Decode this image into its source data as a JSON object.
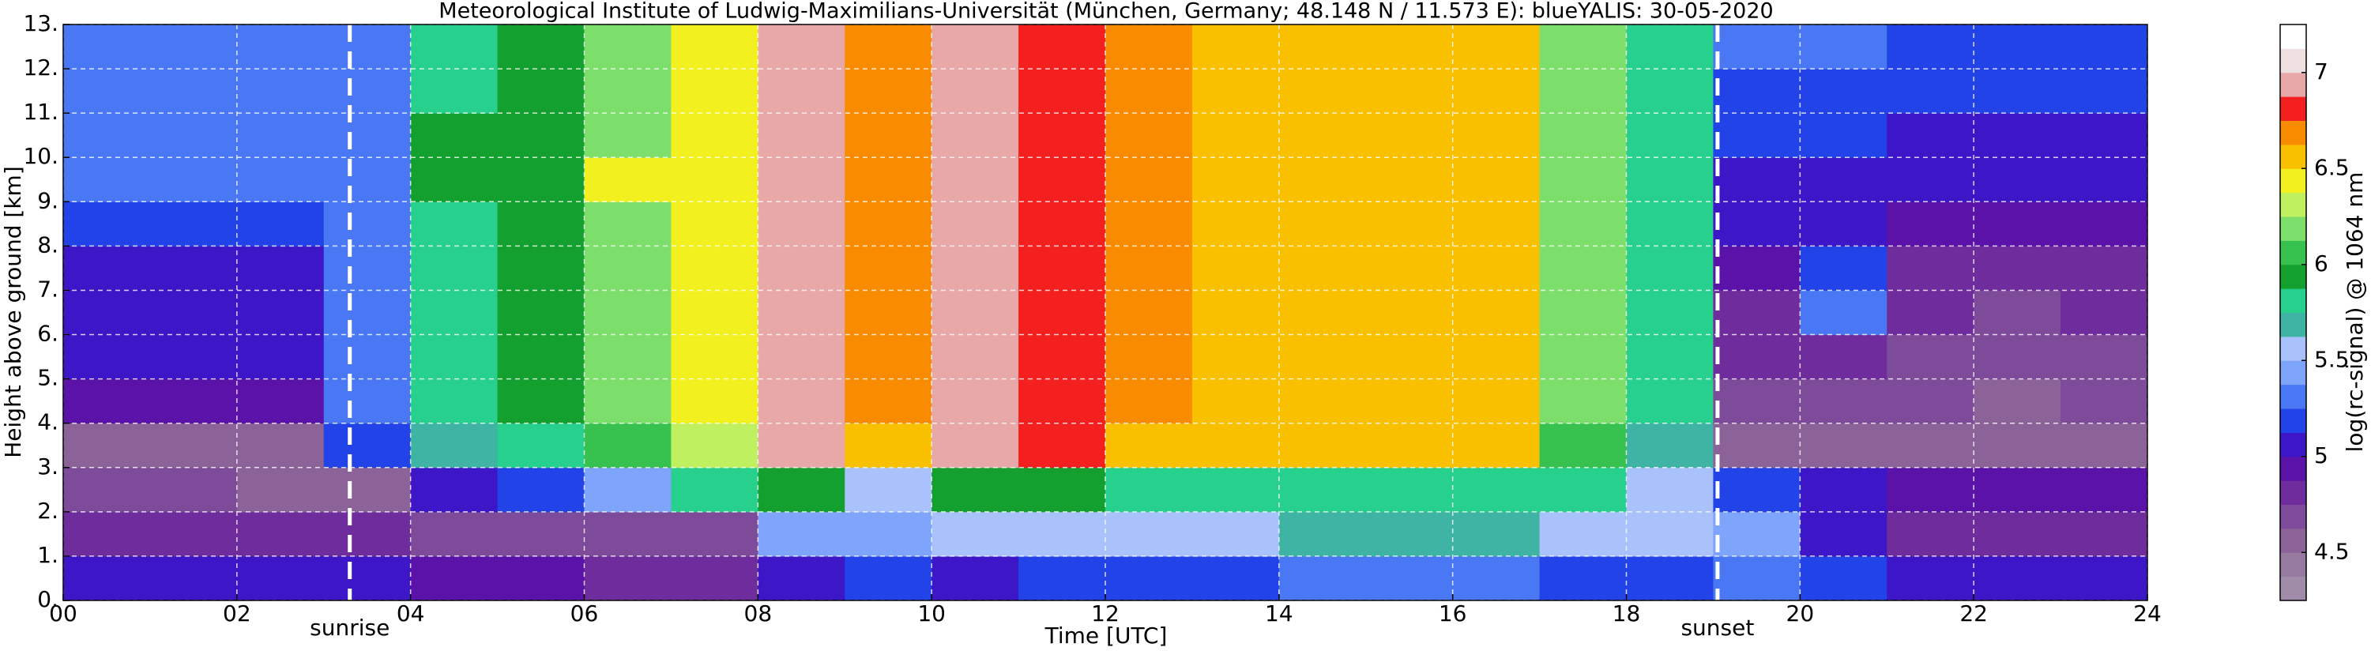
{
  "chart_data": {
    "type": "heatmap",
    "title": "Meteorological Institute of Ludwig-Maximilians-Universität (München, Germany; 48.148 N / 11.573 E):    blueYALIS: 30-05-2020",
    "x_label": "Time [UTC]",
    "y_label": "Height above ground [km]",
    "x": [
      0,
      1,
      2,
      3,
      4,
      5,
      6,
      7,
      8,
      9,
      10,
      11,
      12,
      13,
      14,
      15,
      16,
      17,
      18,
      19,
      20,
      21,
      22,
      23,
      24
    ],
    "y": [
      0,
      1,
      2,
      3,
      4,
      5,
      6,
      7,
      8,
      9,
      10,
      11,
      12,
      13
    ],
    "z": [
      [
        5.1,
        5.1,
        5.1,
        5.0,
        4.9,
        4.9,
        4.8,
        4.8,
        5.1,
        5.2,
        5.1,
        5.2,
        5.2,
        5.2,
        5.3,
        5.3,
        5.3,
        5.2,
        5.2,
        5.3,
        5.2,
        5.1,
        5.0,
        5.0
      ],
      [
        4.8,
        4.8,
        4.8,
        4.8,
        4.7,
        4.7,
        4.7,
        4.7,
        5.4,
        5.4,
        5.6,
        5.6,
        5.6,
        5.6,
        5.7,
        5.7,
        5.7,
        5.6,
        5.6,
        5.4,
        5.0,
        4.8,
        4.8,
        4.8
      ],
      [
        4.7,
        4.7,
        4.6,
        4.6,
        5.0,
        5.2,
        5.4,
        5.8,
        5.9,
        5.6,
        5.9,
        5.9,
        5.8,
        5.8,
        5.8,
        5.8,
        5.8,
        5.8,
        5.6,
        5.2,
        5.0,
        4.9,
        4.9,
        4.9
      ],
      [
        4.6,
        4.6,
        4.6,
        5.2,
        5.7,
        5.8,
        6.1,
        6.3,
        6.9,
        6.6,
        6.9,
        6.8,
        6.6,
        6.6,
        6.6,
        6.6,
        6.5,
        6.1,
        5.7,
        4.6,
        4.6,
        4.6,
        4.6,
        4.6
      ],
      [
        4.9,
        4.9,
        4.9,
        5.3,
        5.8,
        5.9,
        6.2,
        6.4,
        6.9,
        6.7,
        6.9,
        6.8,
        6.7,
        6.6,
        6.6,
        6.6,
        6.5,
        6.2,
        5.8,
        4.7,
        4.7,
        4.7,
        4.6,
        4.7
      ],
      [
        5.0,
        5.0,
        5.0,
        5.3,
        5.8,
        5.9,
        6.2,
        6.4,
        6.9,
        6.7,
        6.9,
        6.8,
        6.7,
        6.6,
        6.6,
        6.6,
        6.5,
        6.2,
        5.8,
        4.8,
        4.8,
        4.7,
        4.7,
        4.7
      ],
      [
        5.0,
        5.0,
        5.0,
        5.3,
        5.8,
        5.9,
        6.2,
        6.4,
        6.9,
        6.7,
        6.9,
        6.8,
        6.7,
        6.6,
        6.6,
        6.6,
        6.5,
        6.2,
        5.8,
        4.8,
        5.3,
        4.8,
        4.7,
        4.8
      ],
      [
        5.1,
        5.1,
        5.1,
        5.3,
        5.8,
        5.9,
        6.2,
        6.4,
        6.9,
        6.7,
        6.9,
        6.8,
        6.7,
        6.6,
        6.6,
        6.6,
        6.5,
        6.2,
        5.8,
        4.9,
        5.2,
        4.8,
        4.8,
        4.8
      ],
      [
        5.2,
        5.2,
        5.2,
        5.3,
        5.8,
        5.9,
        6.2,
        6.4,
        6.9,
        6.7,
        6.9,
        6.8,
        6.7,
        6.6,
        6.6,
        6.6,
        6.5,
        6.2,
        5.8,
        5.0,
        5.0,
        4.9,
        4.9,
        4.9
      ],
      [
        5.3,
        5.3,
        5.3,
        5.3,
        5.9,
        5.9,
        6.4,
        6.4,
        6.9,
        6.7,
        6.9,
        6.8,
        6.7,
        6.6,
        6.6,
        6.6,
        6.5,
        6.2,
        5.8,
        5.1,
        5.1,
        5.0,
        5.0,
        5.0
      ],
      [
        5.3,
        5.3,
        5.3,
        5.3,
        5.9,
        5.9,
        6.2,
        6.4,
        6.9,
        6.7,
        6.9,
        6.8,
        6.7,
        6.6,
        6.6,
        6.6,
        6.5,
        6.2,
        5.8,
        5.2,
        5.2,
        5.1,
        5.1,
        5.1
      ],
      [
        5.3,
        5.3,
        5.3,
        5.3,
        5.8,
        5.9,
        6.2,
        6.4,
        6.9,
        6.7,
        6.9,
        6.8,
        6.7,
        6.6,
        6.6,
        6.6,
        6.5,
        6.2,
        5.8,
        5.2,
        5.2,
        5.2,
        5.2,
        5.2
      ],
      [
        5.3,
        5.3,
        5.3,
        5.3,
        5.8,
        5.9,
        6.2,
        6.4,
        6.9,
        6.7,
        6.9,
        6.8,
        6.7,
        6.6,
        6.6,
        6.6,
        6.5,
        6.2,
        5.8,
        5.3,
        5.3,
        5.2,
        5.2,
        5.2
      ]
    ],
    "xlim": [
      0,
      24
    ],
    "xticks": [
      {
        "value": 0,
        "label": "00"
      },
      {
        "value": 2,
        "label": "02"
      },
      {
        "value": 4,
        "label": "04"
      },
      {
        "value": 6,
        "label": "06"
      },
      {
        "value": 8,
        "label": "08"
      },
      10,
      12,
      14,
      16,
      18,
      20,
      22,
      24
    ],
    "ylim": [
      0,
      13
    ],
    "yticks": [
      {
        "value": 0,
        "label": "0."
      },
      {
        "value": 1,
        "label": "1."
      },
      {
        "value": 2,
        "label": "2."
      },
      {
        "value": 3,
        "label": "3."
      },
      {
        "value": 4,
        "label": "4."
      },
      {
        "value": 5,
        "label": "5."
      },
      {
        "value": 6,
        "label": "6."
      },
      {
        "value": 7,
        "label": "7."
      },
      {
        "value": 8,
        "label": "8."
      },
      {
        "value": 9,
        "label": "9."
      },
      {
        "value": 10,
        "label": "10."
      },
      {
        "value": 11,
        "label": "11."
      },
      {
        "value": 12,
        "label": "12."
      },
      {
        "value": 13,
        "label": "13."
      }
    ],
    "grid": true,
    "annotations": [
      {
        "x": 3.3,
        "text": "sunrise"
      },
      {
        "x": 19.05,
        "text": "sunset"
      }
    ],
    "colorbar": {
      "label": "log(rc-signal) @ 1064 nm",
      "lim": [
        4.25,
        7.25
      ],
      "ticks": [
        4.5,
        5.0,
        5.5,
        6.0,
        6.5,
        7.0
      ],
      "colors": [
        "#a08ca8",
        "#977aa0",
        "#8c6398",
        "#7e4b9a",
        "#6e2c9c",
        "#5a12a8",
        "#3d16c8",
        "#2243e8",
        "#4a78f5",
        "#7fa4fb",
        "#a9c2fb",
        "#3fb3a4",
        "#27d08c",
        "#13a02e",
        "#37c24f",
        "#7cdf6b",
        "#bff060",
        "#f2f01e",
        "#f9c000",
        "#f88b00",
        "#f42020",
        "#e8a8a8",
        "#eee0e0",
        "#ffffff"
      ]
    }
  }
}
